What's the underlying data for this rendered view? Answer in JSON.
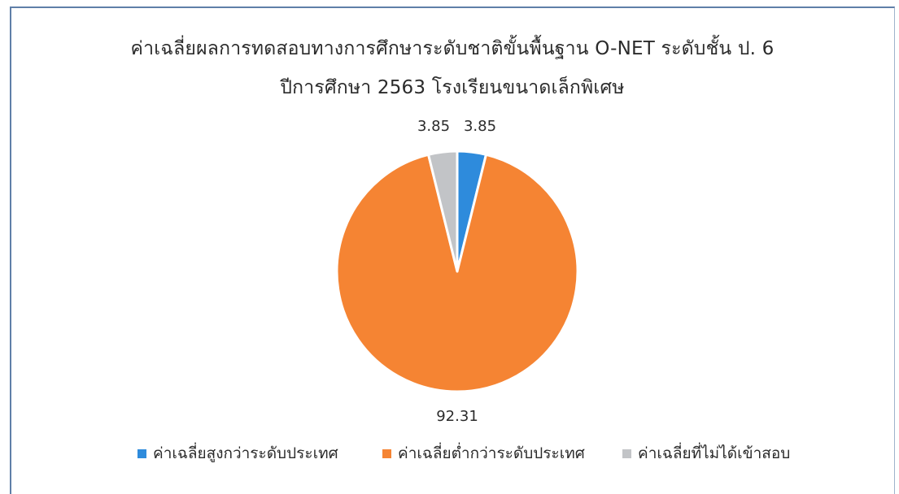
{
  "chart_data": {
    "type": "pie",
    "title": "ค่าเฉลี่ยผลการทดสอบทางการศึกษาระดับชาติขั้นพื้นฐาน O-NET ระดับชั้น ป. 6",
    "subtitle": "ปีการศึกษา 2563 โรงเรียนขนาดเล็กพิเศษ",
    "categories": [
      "ค่าเฉลี่ยสูงกว่าระดับประเทศ",
      "ค่าเฉลี่ยต่ำกว่าระดับประเทศ",
      "ค่าเฉลี่ยที่ไม่ได้เข้าสอบ"
    ],
    "values": [
      3.85,
      92.31,
      3.85
    ],
    "data_labels": [
      "3.85",
      "92.31",
      "3.85"
    ],
    "colors": [
      "#2e8bdc",
      "#f58433",
      "#c2c4c7"
    ],
    "legend_position": "bottom",
    "start_angle": "top, clockwise"
  }
}
